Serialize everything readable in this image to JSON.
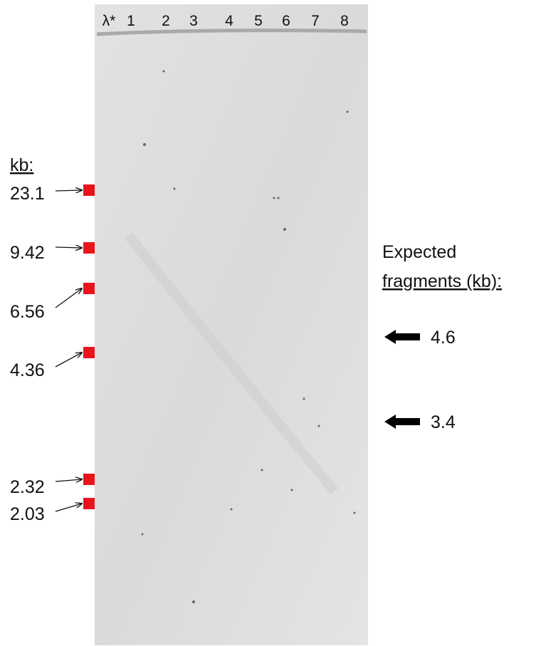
{
  "gel": {
    "lanes": [
      "λ*",
      "1",
      "2",
      "3",
      "4",
      "5",
      "6",
      "7",
      "8"
    ]
  },
  "marker": {
    "header": "kb:",
    "sizes": [
      "23.1",
      "9.42",
      "6.56",
      "4.36",
      "2.32",
      "2.03"
    ]
  },
  "expected": {
    "title_line1": "Expected",
    "title_line2": "fragments (kb):",
    "fragments": [
      "4.6",
      "3.4"
    ]
  }
}
